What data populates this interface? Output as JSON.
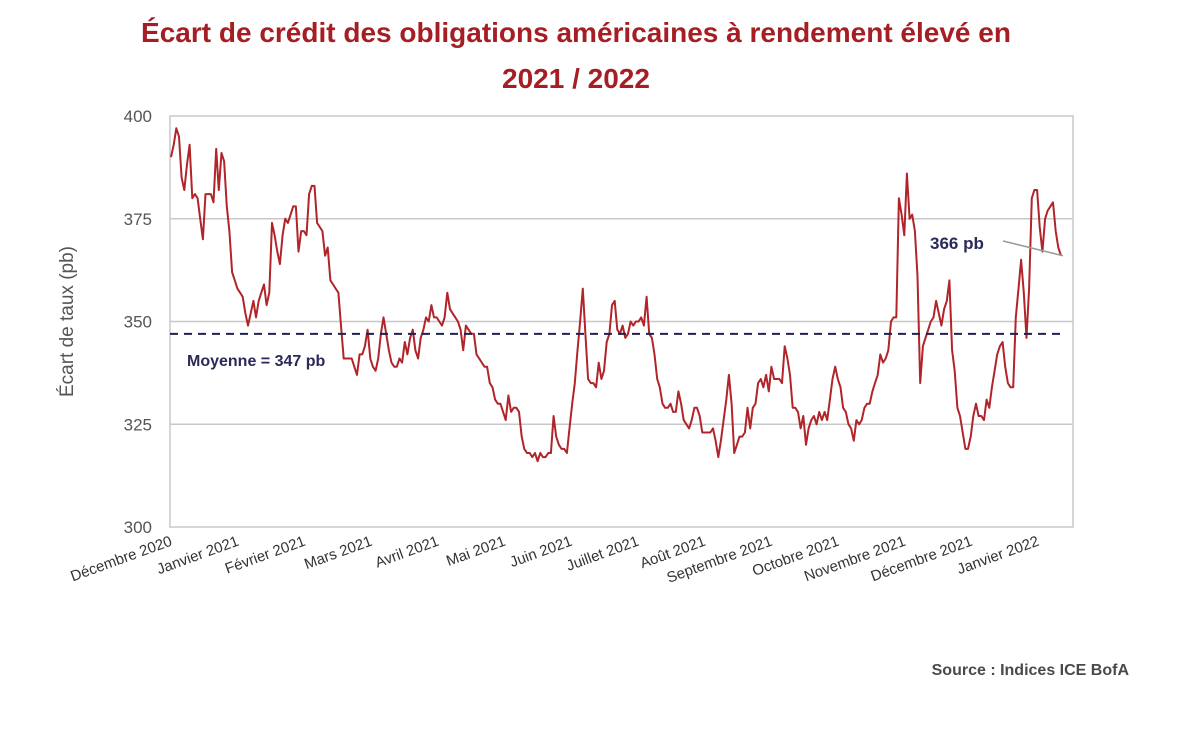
{
  "title_line1": "Écart de crédit des obligations américaines à rendement élevé en",
  "title_line2": "2021 / 2022",
  "source": "Source : Indices ICE BofA",
  "colors": {
    "title": "#a51e23",
    "line": "#b0242a",
    "mean": "#1f2150",
    "grid": "#c8c8c8",
    "annot": "#2a2a5a"
  },
  "chart_data": {
    "type": "line",
    "title": "Écart de crédit des obligations américaines à rendement élevé en 2021 / 2022",
    "xlabel": "",
    "ylabel": "Écart de taux (pb)",
    "ylim": [
      300,
      400
    ],
    "yticks": [
      300,
      325,
      350,
      375,
      400
    ],
    "xticks": [
      "Décembre 2020",
      "Janvier 2021",
      "Février 2021",
      "Mars 2021",
      "Avril 2021",
      "Mai 2021",
      "Juin 2021",
      "Juillet 2021",
      "Août 2021",
      "Septembre 2021",
      "Octobre 2021",
      "Novembre 2021",
      "Décembre 2021",
      "Janvier 2022"
    ],
    "grid": true,
    "series": [
      {
        "values": [
          390,
          393,
          397,
          395,
          385,
          382,
          388,
          393,
          380,
          381,
          380,
          375,
          370,
          381,
          381,
          381,
          379,
          392,
          382,
          391,
          389,
          378,
          372,
          362,
          360,
          358,
          357,
          356,
          352,
          349,
          352,
          355,
          351,
          355,
          357,
          359,
          354,
          357,
          374,
          371,
          367,
          364,
          371,
          375,
          374,
          376,
          378,
          378,
          367,
          372,
          372,
          371,
          381,
          383,
          383,
          374,
          373,
          372,
          366,
          368,
          360,
          359,
          358,
          357,
          349,
          341,
          341,
          341,
          341,
          339,
          337,
          342,
          342,
          344,
          348,
          341,
          339,
          338,
          341,
          347,
          351,
          347,
          343,
          340,
          339,
          339,
          341,
          340,
          345,
          342,
          346,
          348,
          343,
          341,
          346,
          348,
          351,
          350,
          354,
          351,
          351,
          350,
          349,
          351,
          357,
          353,
          352,
          351,
          350,
          348,
          343,
          349,
          348,
          347,
          347,
          342,
          341,
          340,
          339,
          339,
          335,
          334,
          331,
          330,
          330,
          328,
          326,
          332,
          328,
          329,
          329,
          328,
          322,
          319,
          318,
          318,
          317,
          318,
          316,
          318,
          317,
          317,
          318,
          318,
          327,
          322,
          320,
          319,
          319,
          318,
          324,
          330,
          335,
          343,
          350,
          358,
          347,
          336,
          335,
          335,
          334,
          340,
          336,
          338,
          345,
          347,
          354,
          355,
          348,
          347,
          349,
          346,
          347,
          350,
          349,
          350,
          350,
          351,
          349,
          356,
          347,
          346,
          342,
          336,
          334,
          330,
          329,
          329,
          330,
          328,
          328,
          333,
          330,
          326,
          325,
          324,
          326,
          329,
          329,
          327,
          323,
          323,
          323,
          323,
          324,
          321,
          317,
          321,
          326,
          331,
          337,
          330,
          318,
          320,
          322,
          322,
          323,
          329,
          324,
          329,
          330,
          335,
          336,
          334,
          337,
          333,
          339,
          336,
          336,
          336,
          335,
          344,
          341,
          337,
          329,
          329,
          328,
          324,
          327,
          320,
          324,
          326,
          327,
          325,
          328,
          326,
          328,
          326,
          331,
          336,
          339,
          336,
          334,
          329,
          328,
          325,
          324,
          321,
          326,
          325,
          326,
          329,
          330,
          330,
          333,
          335,
          337,
          342,
          340,
          341,
          343,
          350,
          351,
          351,
          380,
          376,
          371,
          386,
          375,
          376,
          372,
          361,
          335,
          344,
          346,
          348,
          350,
          351,
          355,
          352,
          349,
          353,
          355,
          360,
          343,
          338,
          329,
          327,
          323,
          319,
          319,
          322,
          327,
          330,
          327,
          327,
          326,
          331,
          329,
          334,
          338,
          342,
          344,
          345,
          339,
          335,
          334,
          334,
          351,
          358,
          365,
          357,
          346,
          358,
          380,
          382,
          382,
          373,
          367,
          375,
          377,
          378,
          379,
          372,
          368,
          366
        ]
      }
    ],
    "annotations": [
      {
        "text": "Moyenne = 347 pb",
        "value": 347
      },
      {
        "text": "366 pb",
        "value": 366
      }
    ]
  }
}
